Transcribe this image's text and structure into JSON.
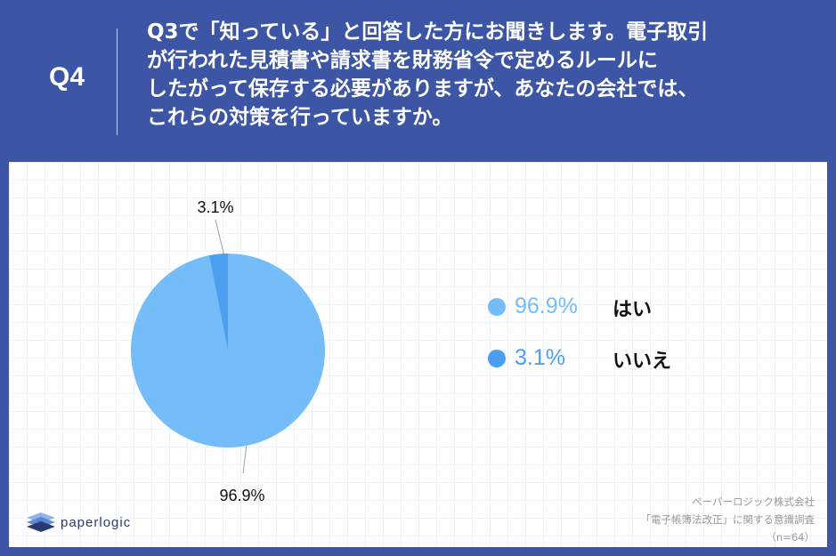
{
  "header": {
    "q_label": "Q4",
    "question_lines": [
      "Q3で「知っている」と回答した方にお聞きします。電子取引",
      "が行われた見積書や請求書を財務省令で定めるルールに",
      "したがって保存する必要がありますが、あなたの会社では、",
      "これらの対策を行っていますか。"
    ]
  },
  "colors": {
    "header_bg": "#3c55a4",
    "yes": "#74bdf8",
    "no": "#4b9ef0"
  },
  "chart_data": {
    "type": "pie",
    "title": "",
    "categories": [
      "はい",
      "いいえ"
    ],
    "values": [
      96.9,
      3.1
    ],
    "slice_labels": [
      "96.9%",
      "3.1%"
    ],
    "legend_placement": "right",
    "n": 64
  },
  "legend": [
    {
      "percent": "96.9%",
      "label": "はい"
    },
    {
      "percent": "3.1%",
      "label": "いいえ"
    }
  ],
  "logo": {
    "text": "paperlogic"
  },
  "source": {
    "company": "ペーパーロジック株式会社",
    "survey": "「電子帳簿法改正」に関する意識調査",
    "n": "（n=64）"
  }
}
